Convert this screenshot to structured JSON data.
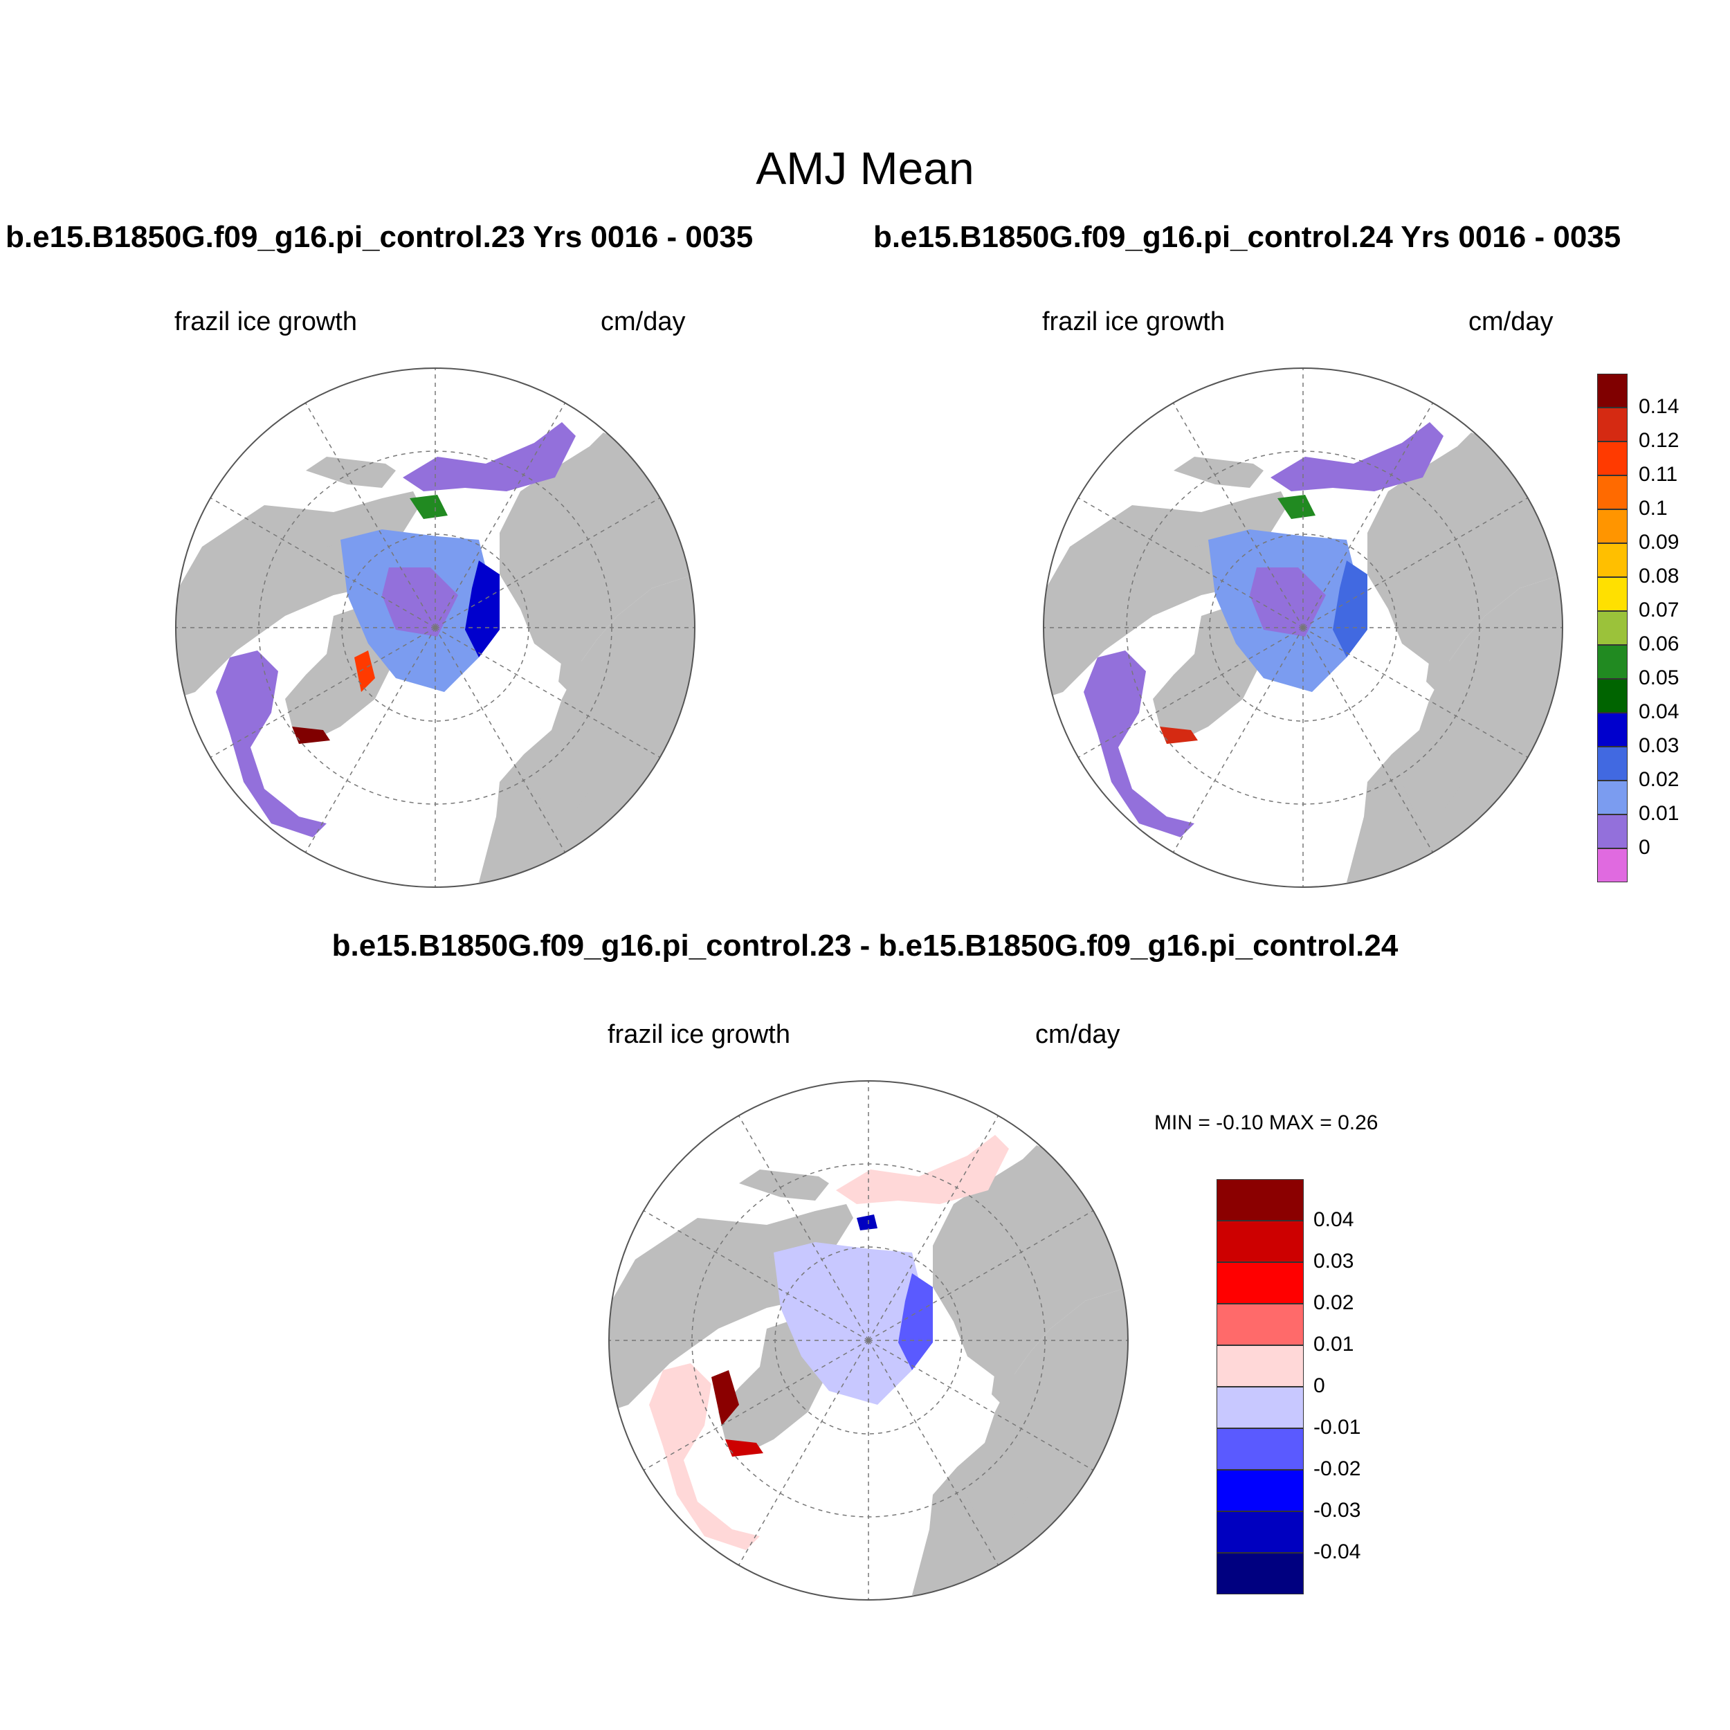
{
  "header": {
    "title": "AMJ Mean",
    "case1": "b.e15.B1850G.f09_g16.pi_control.23  Yrs 0016 - 0035",
    "case2": "b.e15.B1850G.f09_g16.pi_control.24  Yrs 0016 - 0035",
    "diff": "b.e15.B1850G.f09_g16.pi_control.23 - b.e15.B1850G.f09_g16.pi_control.24"
  },
  "panels": {
    "variable": "frazil ice growth",
    "units": "cm/day"
  },
  "diff_stats": {
    "text": "MIN =  -0.10 MAX =   0.26",
    "min": -0.1,
    "max": 0.26
  },
  "colorbar_main": {
    "labels": [
      "0.14",
      "0.12",
      "0.11",
      "0.1",
      "0.09",
      "0.08",
      "0.07",
      "0.06",
      "0.05",
      "0.04",
      "0.03",
      "0.02",
      "0.01",
      "0"
    ],
    "colors": [
      "#800000",
      "#d52a12",
      "#ff3a00",
      "#ff6a00",
      "#ff9500",
      "#ffbf00",
      "#ffe000",
      "#9bc23a",
      "#218a21",
      "#006400",
      "#0000cd",
      "#4169e1",
      "#7b9cf0",
      "#9370db",
      "#e06ae0"
    ]
  },
  "colorbar_diff": {
    "labels": [
      "0.04",
      "0.03",
      "0.02",
      "0.01",
      "0",
      "-0.01",
      "-0.02",
      "-0.03",
      "-0.04"
    ],
    "colors": [
      "#8b0000",
      "#cd0000",
      "#ff0000",
      "#ff6a6a",
      "#ffd8d8",
      "#c8c8ff",
      "#5a5aff",
      "#0000ff",
      "#0000c0",
      "#000080"
    ]
  },
  "colors": {
    "land": "#bdbdbd",
    "ocean": "#ffffff",
    "grid": "#777777"
  }
}
